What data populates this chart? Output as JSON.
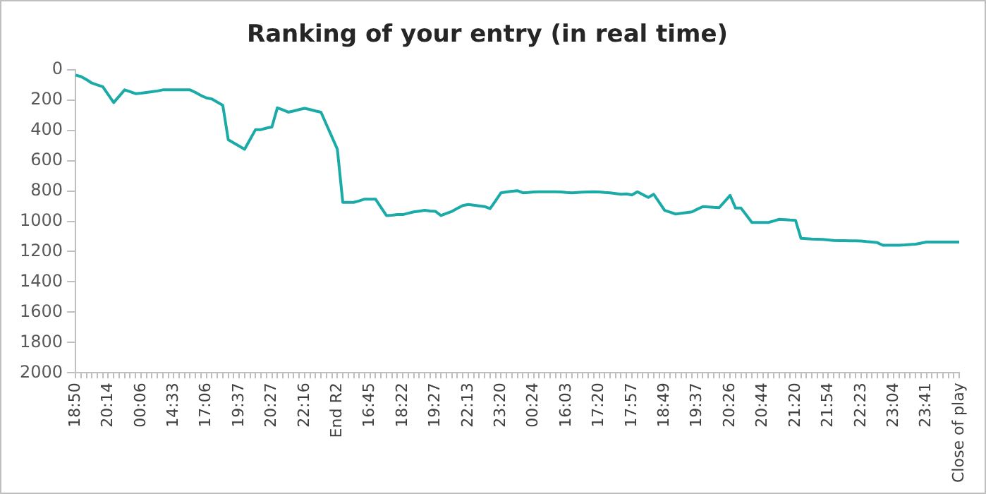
{
  "chart_data": {
    "type": "line",
    "title": "Ranking of your entry (in real time)",
    "categories": [
      "18:50",
      null,
      null,
      null,
      null,
      null,
      "20:14",
      null,
      null,
      null,
      null,
      null,
      "00:06",
      null,
      null,
      null,
      null,
      null,
      "14:33",
      null,
      null,
      null,
      null,
      null,
      "17:06",
      null,
      null,
      null,
      null,
      null,
      "19:37",
      null,
      null,
      null,
      null,
      null,
      "20:27",
      null,
      null,
      null,
      null,
      null,
      "22:16",
      null,
      null,
      null,
      null,
      null,
      "End R2",
      null,
      null,
      null,
      null,
      null,
      "16:45",
      null,
      null,
      null,
      null,
      null,
      "18:22",
      null,
      null,
      null,
      null,
      null,
      "19:27",
      null,
      null,
      null,
      null,
      null,
      "22:13",
      null,
      null,
      null,
      null,
      null,
      "23:20",
      null,
      null,
      null,
      null,
      null,
      "00:24",
      null,
      null,
      null,
      null,
      null,
      "16:03",
      null,
      null,
      null,
      null,
      null,
      "17:20",
      null,
      null,
      null,
      null,
      null,
      "17:57",
      null,
      null,
      null,
      null,
      null,
      "18:49",
      null,
      null,
      null,
      null,
      null,
      "19:37",
      null,
      null,
      null,
      null,
      null,
      "20:26",
      null,
      null,
      null,
      null,
      null,
      "20:44",
      null,
      null,
      null,
      null,
      null,
      "21:20",
      null,
      null,
      null,
      null,
      null,
      "21:54",
      null,
      null,
      null,
      null,
      null,
      "22:23",
      null,
      null,
      null,
      null,
      null,
      "23:04",
      null,
      null,
      null,
      null,
      null,
      "23:41",
      null,
      null,
      null,
      null,
      null,
      "Close of play"
    ],
    "series": [
      {
        "color": "#1aaba8",
        "values": [
          35,
          45,
          65,
          88,
          100,
          112,
          165,
          217,
          175,
          133,
          145,
          158,
          155,
          150,
          145,
          140,
          133,
          133,
          133,
          133,
          133,
          133,
          150,
          170,
          186,
          193,
          214,
          235,
          462,
          483,
          504,
          525,
          460,
          395,
          395,
          385,
          378,
          252,
          265,
          280,
          272,
          263,
          255,
          263,
          272,
          280,
          362,
          443,
          525,
          875,
          875,
          875,
          865,
          854,
          854,
          854,
          908,
          962,
          960,
          956,
          956,
          947,
          938,
          933,
          928,
          932,
          935,
          962,
          948,
          935,
          915,
          896,
          889,
          894,
          898,
          903,
          917,
          865,
          812,
          807,
          802,
          798,
          812,
          810,
          807,
          805,
          805,
          805,
          805,
          807,
          810,
          812,
          810,
          808,
          806,
          805,
          807,
          810,
          812,
          817,
          822,
          819,
          826,
          805,
          824,
          843,
          822,
          875,
          928,
          940,
          952,
          947,
          943,
          938,
          920,
          903,
          905,
          908,
          910,
          870,
          829,
          913,
          913,
          960,
          1008,
          1008,
          1008,
          1008,
          998,
          987,
          989,
          992,
          994,
          1113,
          1115,
          1117,
          1118,
          1120,
          1123,
          1127,
          1128,
          1128,
          1129,
          1129,
          1130,
          1134,
          1137,
          1141,
          1158,
          1158,
          1158,
          1158,
          1156,
          1153,
          1151,
          1144,
          1137,
          1137,
          1137,
          1137,
          1137,
          1137,
          1137
        ]
      }
    ],
    "ylim": [
      2000,
      0
    ],
    "yticks": [
      0,
      200,
      400,
      600,
      800,
      1000,
      1200,
      1400,
      1600,
      1800,
      2000
    ],
    "grid": false,
    "legend": false,
    "marker": "none",
    "line_style": "solid"
  }
}
